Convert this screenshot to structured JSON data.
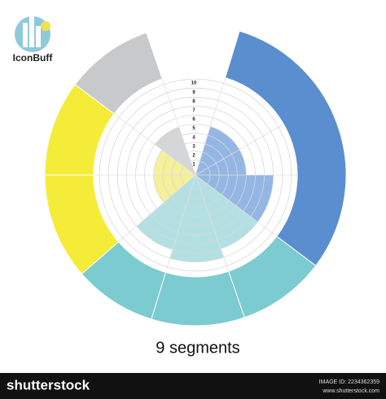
{
  "logo": {
    "text": "IconBuff"
  },
  "scale_labels": [
    "1",
    "2",
    "3",
    "4",
    "5",
    "6",
    "7",
    "8",
    "9",
    "10"
  ],
  "caption": "9 segments",
  "footer": {
    "brand": "shutterstock",
    "image_id": "IMAGE ID: 2234362359",
    "url": "www.shutterstock.com"
  }
}
